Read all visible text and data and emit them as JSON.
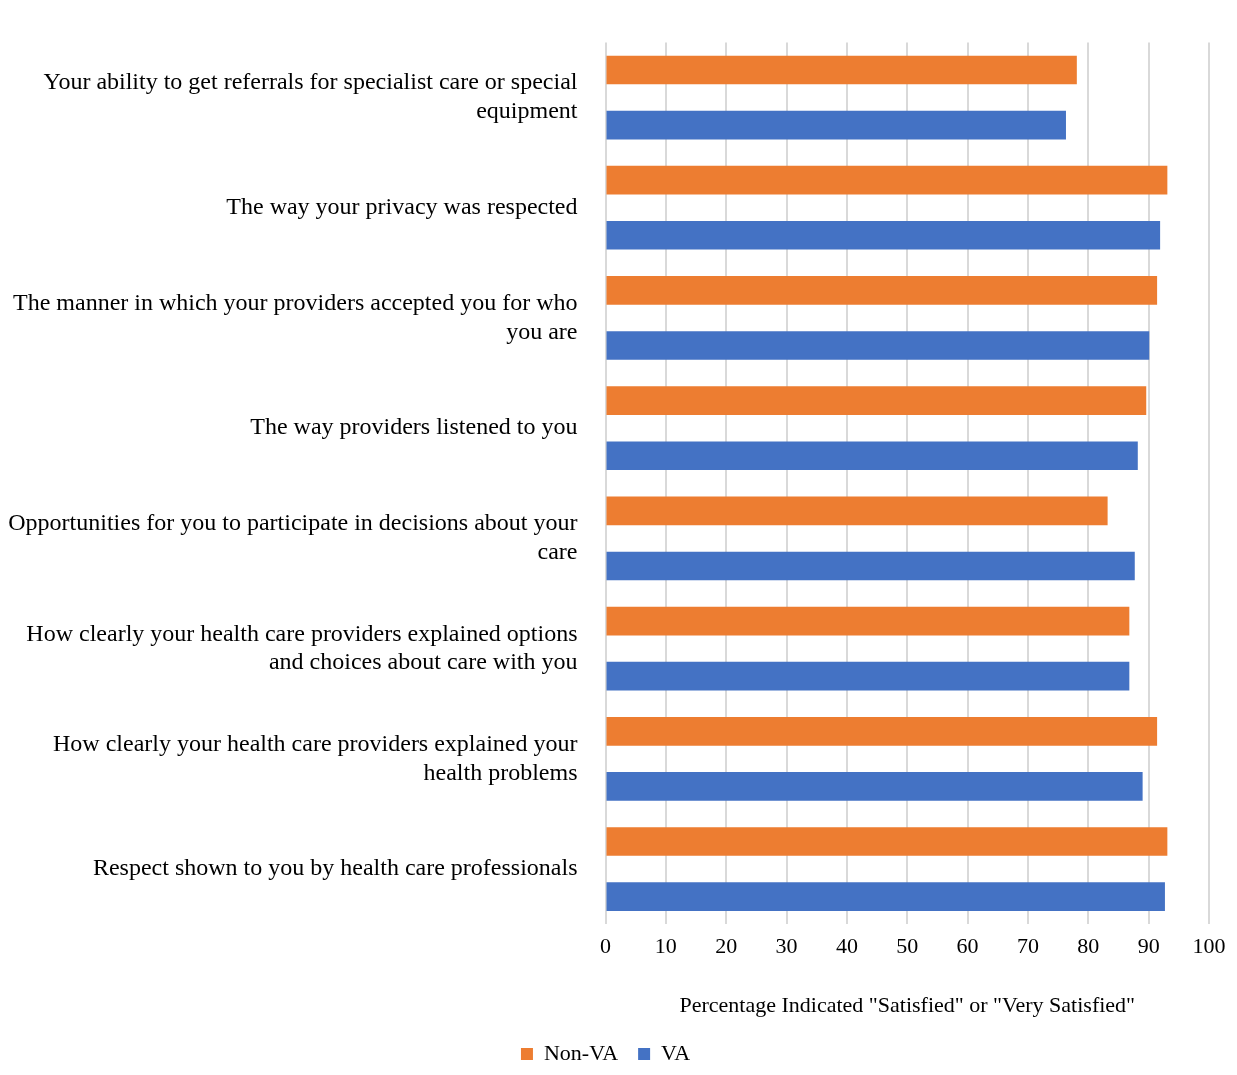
{
  "chart_data": {
    "type": "bar",
    "orientation": "horizontal",
    "categories": [
      "Your ability to get referrals for specialist care or special equipment",
      "The way your privacy was respected",
      "The manner in which your providers accepted you for who you are",
      "The way providers listened to you",
      "Opportunities for you to participate in decisions about your care",
      "How clearly your health care providers explained options and choices about care with you",
      "How clearly your health care providers explained your health problems",
      "Respect shown to you by health care professionals"
    ],
    "series": [
      {
        "name": "Non-VA",
        "color": "#ed7d31",
        "values": [
          78.1,
          93.1,
          91.4,
          89.6,
          83.2,
          86.8,
          91.4,
          93.1
        ]
      },
      {
        "name": "VA",
        "color": "#4472c4",
        "values": [
          76.3,
          91.9,
          90.1,
          88.2,
          87.7,
          86.8,
          89.0,
          92.7
        ]
      }
    ],
    "xlabel": "Percentage Indicated \"Satisfied\" or \"Very Satisfied\"",
    "xlim": [
      0,
      100
    ],
    "xticks": [
      0,
      10,
      20,
      30,
      40,
      50,
      60,
      70,
      80,
      90,
      100
    ],
    "grid": "x",
    "legend": "bottom"
  }
}
